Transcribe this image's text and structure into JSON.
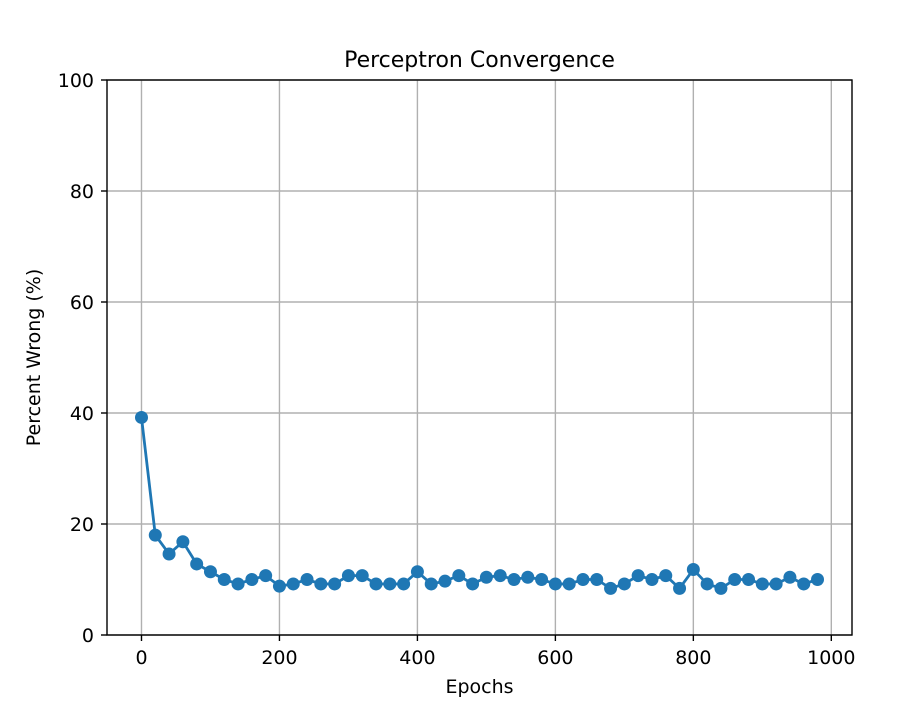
{
  "chart_data": {
    "type": "line",
    "title": "Perceptron Convergence",
    "xlabel": "Epochs",
    "ylabel": "Percent Wrong (%)",
    "xlim": [
      -50,
      1030
    ],
    "ylim": [
      0,
      100
    ],
    "xticks": [
      0,
      200,
      400,
      600,
      800,
      1000
    ],
    "yticks": [
      0,
      20,
      40,
      60,
      80,
      100
    ],
    "grid": true,
    "color": "#1f77b4",
    "marker": "circle",
    "x": [
      0,
      20,
      40,
      60,
      80,
      100,
      120,
      140,
      160,
      180,
      200,
      220,
      240,
      260,
      280,
      300,
      320,
      340,
      360,
      380,
      400,
      420,
      440,
      460,
      480,
      500,
      520,
      540,
      560,
      580,
      600,
      620,
      640,
      660,
      680,
      700,
      720,
      740,
      760,
      780,
      800,
      820,
      840,
      860,
      880,
      900,
      920,
      940,
      960,
      980
    ],
    "y": [
      39.2,
      18.0,
      14.6,
      16.8,
      12.8,
      11.4,
      10.0,
      9.2,
      10.0,
      10.7,
      8.8,
      9.2,
      10.0,
      9.2,
      9.2,
      10.7,
      10.7,
      9.2,
      9.2,
      9.2,
      11.4,
      9.2,
      9.7,
      10.7,
      9.2,
      10.4,
      10.7,
      10.0,
      10.4,
      10.0,
      9.2,
      9.2,
      10.0,
      10.0,
      8.4,
      9.2,
      10.7,
      10.0,
      10.7,
      8.4,
      11.8,
      9.2,
      8.4,
      10.0,
      10.0,
      9.2,
      9.2,
      10.4,
      9.2,
      10.0
    ]
  }
}
